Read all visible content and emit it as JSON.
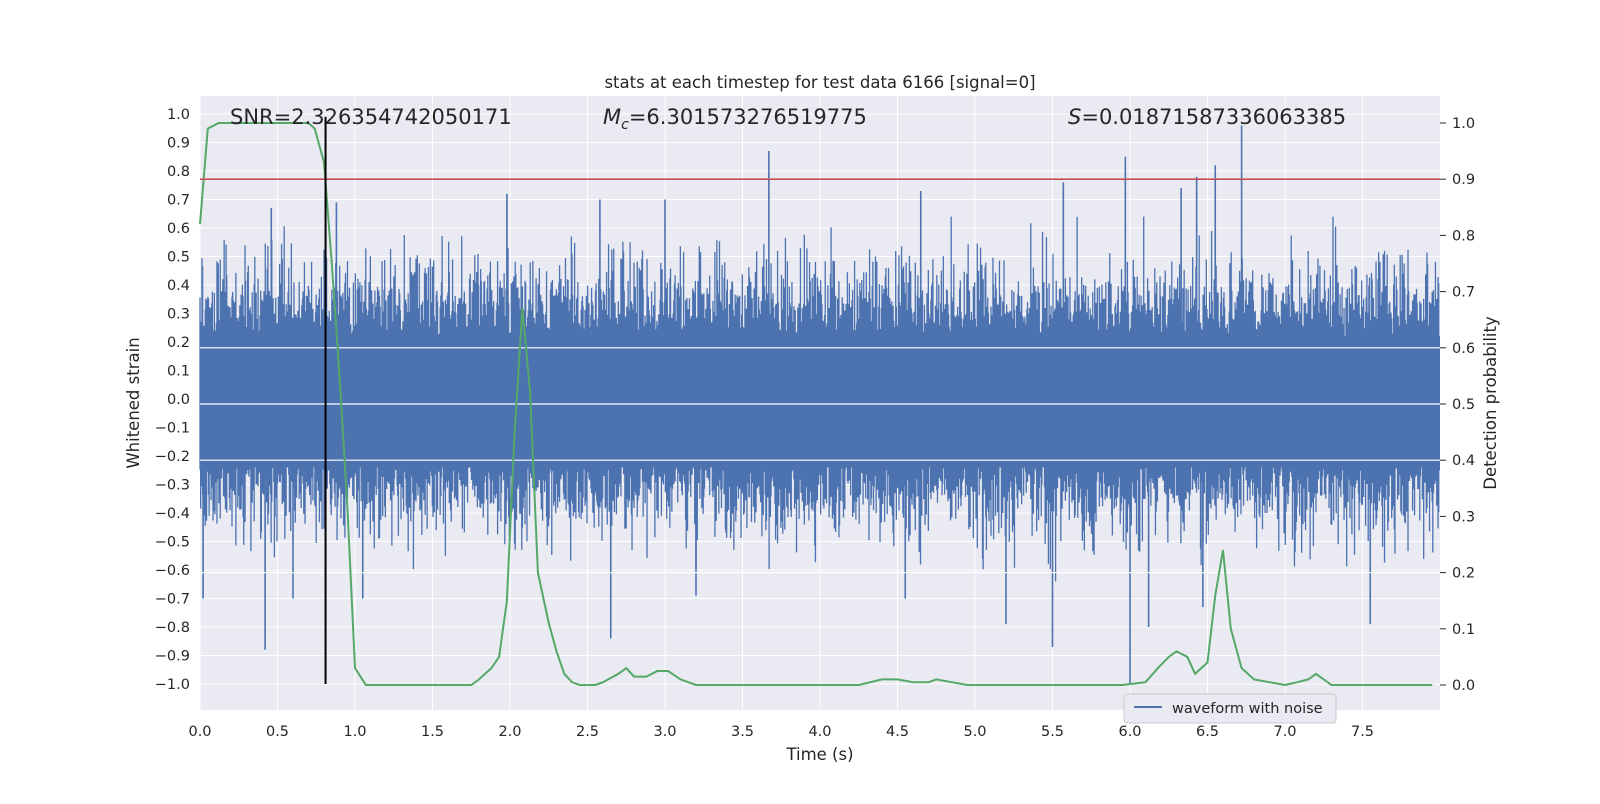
{
  "chart_data": {
    "type": "line",
    "title": "stats at each timestep for test data 6166 [signal=0]",
    "xlabel": "Time (s)",
    "ylabel": "Whitened strain",
    "y2label": "Detection probability",
    "xlim": [
      0,
      8
    ],
    "ylim": [
      -1.1,
      1.06
    ],
    "y2lim": [
      -0.05,
      1.05
    ],
    "xticks": [
      "0.0",
      "0.5",
      "1.0",
      "1.5",
      "2.0",
      "2.5",
      "3.0",
      "3.5",
      "4.0",
      "4.5",
      "5.0",
      "5.5",
      "6.0",
      "6.5",
      "7.0",
      "7.5"
    ],
    "xtick_values": [
      0,
      0.5,
      1,
      1.5,
      2,
      2.5,
      3,
      3.5,
      4,
      4.5,
      5,
      5.5,
      6,
      6.5,
      7,
      7.5
    ],
    "yticks": [
      "−1.0",
      "−0.9",
      "−0.8",
      "−0.7",
      "−0.6",
      "−0.5",
      "−0.4",
      "−0.3",
      "−0.2",
      "−0.1",
      "0.0",
      "0.1",
      "0.2",
      "0.3",
      "0.4",
      "0.5",
      "0.6",
      "0.7",
      "0.8",
      "0.9",
      "1.0"
    ],
    "ytick_values": [
      -1,
      -0.9,
      -0.8,
      -0.7,
      -0.6,
      -0.5,
      -0.4,
      -0.3,
      -0.2,
      -0.1,
      0,
      0.1,
      0.2,
      0.3,
      0.4,
      0.5,
      0.6,
      0.7,
      0.8,
      0.9,
      1
    ],
    "y2ticks": [
      "0.0",
      "0.1",
      "0.2",
      "0.3",
      "0.4",
      "0.5",
      "0.6",
      "0.7",
      "0.8",
      "0.9",
      "1.0"
    ],
    "y2tick_values": [
      0,
      0.1,
      0.2,
      0.3,
      0.4,
      0.5,
      0.6,
      0.7,
      0.8,
      0.9,
      1
    ],
    "annotations": {
      "snr": "SNR=2.326354742050171",
      "mc_symbol": "M",
      "mc_sub": "c",
      "mc_value": "=6.301573276519775",
      "s_symbol": "S",
      "s_value": "=0.01871587336063385"
    },
    "legend": {
      "label": "waveform with noise",
      "placement": "lower-right"
    },
    "series": [
      {
        "name": "waveform with noise",
        "axis": "left",
        "color": "#4c72b0",
        "spikes": [
          {
            "x": 3.67,
            "y": 0.87
          },
          {
            "x": 5.97,
            "y": 0.85
          },
          {
            "x": 6.72,
            "y": 0.96
          },
          {
            "x": 6.55,
            "y": 0.82
          },
          {
            "x": 6.43,
            "y": 0.78
          },
          {
            "x": 1.98,
            "y": 0.72
          },
          {
            "x": 4.65,
            "y": 0.73
          },
          {
            "x": 6.33,
            "y": 0.74
          },
          {
            "x": 5.57,
            "y": 0.76
          },
          {
            "x": 0.46,
            "y": 0.67
          },
          {
            "x": 0.88,
            "y": 0.69
          },
          {
            "x": 2.58,
            "y": 0.7
          },
          {
            "x": 3.0,
            "y": 0.7
          },
          {
            "x": 0.42,
            "y": -0.88
          },
          {
            "x": 2.65,
            "y": -0.84
          },
          {
            "x": 5.2,
            "y": -0.79
          },
          {
            "x": 5.5,
            "y": -0.87
          },
          {
            "x": 6.0,
            "y": -1.0
          },
          {
            "x": 6.12,
            "y": -0.8
          },
          {
            "x": 7.55,
            "y": -0.79
          },
          {
            "x": 0.02,
            "y": -0.7
          },
          {
            "x": 0.6,
            "y": -0.7
          },
          {
            "x": 1.05,
            "y": -0.7
          },
          {
            "x": 4.55,
            "y": -0.7
          },
          {
            "x": 3.2,
            "y": -0.69
          },
          {
            "x": 6.47,
            "y": -0.73
          }
        ]
      },
      {
        "name": "",
        "axis": "right",
        "color": "#55a868",
        "x": [
          0.0,
          0.05,
          0.12,
          0.2,
          0.3,
          0.4,
          0.5,
          0.6,
          0.7,
          0.74,
          0.8,
          0.85,
          0.9,
          0.95,
          1.0,
          1.07,
          1.2,
          1.4,
          1.6,
          1.7,
          1.75,
          1.8,
          1.88,
          1.93,
          1.98,
          2.03,
          2.08,
          2.13,
          2.18,
          2.25,
          2.3,
          2.35,
          2.4,
          2.45,
          2.5,
          2.55,
          2.6,
          2.7,
          2.75,
          2.8,
          2.88,
          2.95,
          3.02,
          3.1,
          3.2,
          3.35,
          3.5,
          3.65,
          3.8,
          3.95,
          4.1,
          4.25,
          4.4,
          4.5,
          4.6,
          4.7,
          4.75,
          4.85,
          4.95,
          5.05,
          5.2,
          5.35,
          5.5,
          5.65,
          5.8,
          5.95,
          6.1,
          6.18,
          6.25,
          6.3,
          6.37,
          6.42,
          6.5,
          6.55,
          6.6,
          6.65,
          6.72,
          6.8,
          6.9,
          7.0,
          7.08,
          7.15,
          7.2,
          7.3,
          7.45,
          7.6,
          7.8,
          7.95
        ],
        "y": [
          0.82,
          0.99,
          1.0,
          1.0,
          1.0,
          1.0,
          1.0,
          1.0,
          1.0,
          0.99,
          0.93,
          0.75,
          0.55,
          0.32,
          0.03,
          0.0,
          0.0,
          0.0,
          0.0,
          0.0,
          0.0,
          0.01,
          0.03,
          0.05,
          0.15,
          0.45,
          0.67,
          0.52,
          0.2,
          0.11,
          0.06,
          0.02,
          0.005,
          0.0,
          0.0,
          0.0,
          0.005,
          0.02,
          0.03,
          0.015,
          0.015,
          0.025,
          0.025,
          0.01,
          0.0,
          0.0,
          0.0,
          0.0,
          0.0,
          0.0,
          0.0,
          0.0,
          0.01,
          0.01,
          0.005,
          0.005,
          0.01,
          0.005,
          0.0,
          0.0,
          0.0,
          0.0,
          0.0,
          0.0,
          0.0,
          0.0,
          0.005,
          0.03,
          0.05,
          0.06,
          0.05,
          0.02,
          0.04,
          0.16,
          0.24,
          0.1,
          0.03,
          0.01,
          0.005,
          0.0,
          0.005,
          0.01,
          0.02,
          0.0,
          0.0,
          0.0,
          0.0,
          0.0
        ]
      }
    ],
    "threshold": {
      "axis": "right",
      "y": 0.9,
      "color": "#c44e52"
    },
    "marker_line": {
      "x": 0.81,
      "y_from": -1.0,
      "y_to": 0.99,
      "color": "#000000"
    },
    "background": "#eaeaf2",
    "grid": true
  }
}
